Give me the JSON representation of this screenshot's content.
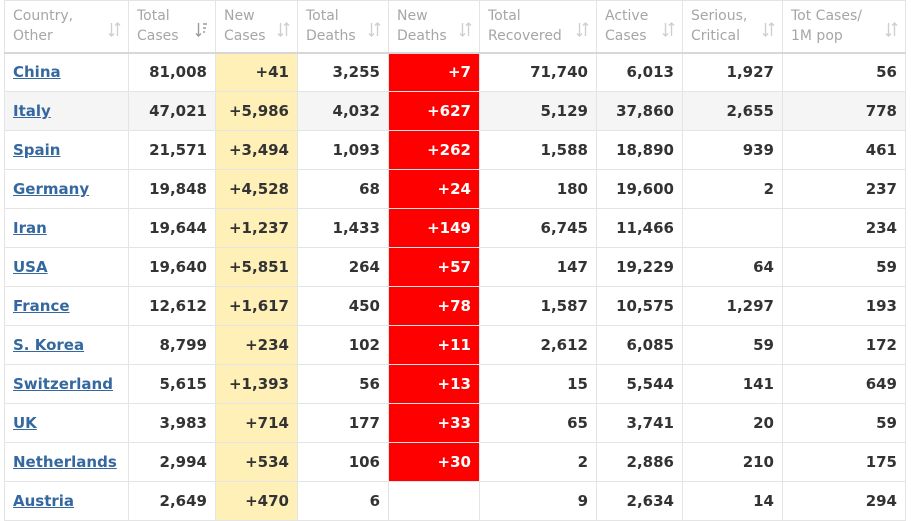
{
  "table": {
    "headers": [
      {
        "line1": "Country,",
        "line2": "Other",
        "icon": "sort-both-icon"
      },
      {
        "line1": "Total",
        "line2": "Cases",
        "icon": "sort-descending-icon"
      },
      {
        "line1": "New",
        "line2": "Cases",
        "icon": "sort-both-icon"
      },
      {
        "line1": "Total",
        "line2": "Deaths",
        "icon": "sort-both-icon"
      },
      {
        "line1": "New",
        "line2": "Deaths",
        "icon": "sort-both-icon"
      },
      {
        "line1": "Total",
        "line2": "Recovered",
        "icon": "sort-both-icon"
      },
      {
        "line1": "Active",
        "line2": "Cases",
        "icon": "sort-both-icon"
      },
      {
        "line1": "Serious,",
        "line2": "Critical",
        "icon": "sort-both-icon"
      },
      {
        "line1": "Tot Cases/",
        "line2": "1M pop",
        "icon": "sort-both-icon"
      }
    ],
    "rows": [
      {
        "country": "China",
        "total_cases": "81,008",
        "new_cases": "+41",
        "total_deaths": "3,255",
        "new_deaths": "+7",
        "total_recovered": "71,740",
        "active_cases": "6,013",
        "serious_critical": "1,927",
        "cases_per_1m": "56"
      },
      {
        "country": "Italy",
        "total_cases": "47,021",
        "new_cases": "+5,986",
        "total_deaths": "4,032",
        "new_deaths": "+627",
        "total_recovered": "5,129",
        "active_cases": "37,860",
        "serious_critical": "2,655",
        "cases_per_1m": "778"
      },
      {
        "country": "Spain",
        "total_cases": "21,571",
        "new_cases": "+3,494",
        "total_deaths": "1,093",
        "new_deaths": "+262",
        "total_recovered": "1,588",
        "active_cases": "18,890",
        "serious_critical": "939",
        "cases_per_1m": "461"
      },
      {
        "country": "Germany",
        "total_cases": "19,848",
        "new_cases": "+4,528",
        "total_deaths": "68",
        "new_deaths": "+24",
        "total_recovered": "180",
        "active_cases": "19,600",
        "serious_critical": "2",
        "cases_per_1m": "237"
      },
      {
        "country": "Iran",
        "total_cases": "19,644",
        "new_cases": "+1,237",
        "total_deaths": "1,433",
        "new_deaths": "+149",
        "total_recovered": "6,745",
        "active_cases": "11,466",
        "serious_critical": "",
        "cases_per_1m": "234"
      },
      {
        "country": "USA",
        "total_cases": "19,640",
        "new_cases": "+5,851",
        "total_deaths": "264",
        "new_deaths": "+57",
        "total_recovered": "147",
        "active_cases": "19,229",
        "serious_critical": "64",
        "cases_per_1m": "59"
      },
      {
        "country": "France",
        "total_cases": "12,612",
        "new_cases": "+1,617",
        "total_deaths": "450",
        "new_deaths": "+78",
        "total_recovered": "1,587",
        "active_cases": "10,575",
        "serious_critical": "1,297",
        "cases_per_1m": "193"
      },
      {
        "country": "S. Korea",
        "total_cases": "8,799",
        "new_cases": "+234",
        "total_deaths": "102",
        "new_deaths": "+11",
        "total_recovered": "2,612",
        "active_cases": "6,085",
        "serious_critical": "59",
        "cases_per_1m": "172"
      },
      {
        "country": "Switzerland",
        "total_cases": "5,615",
        "new_cases": "+1,393",
        "total_deaths": "56",
        "new_deaths": "+13",
        "total_recovered": "15",
        "active_cases": "5,544",
        "serious_critical": "141",
        "cases_per_1m": "649"
      },
      {
        "country": "UK",
        "total_cases": "3,983",
        "new_cases": "+714",
        "total_deaths": "177",
        "new_deaths": "+33",
        "total_recovered": "65",
        "active_cases": "3,741",
        "serious_critical": "20",
        "cases_per_1m": "59"
      },
      {
        "country": "Netherlands",
        "total_cases": "2,994",
        "new_cases": "+534",
        "total_deaths": "106",
        "new_deaths": "+30",
        "total_recovered": "2",
        "active_cases": "2,886",
        "serious_critical": "210",
        "cases_per_1m": "175"
      },
      {
        "country": "Austria",
        "total_cases": "2,649",
        "new_cases": "+470",
        "total_deaths": "6",
        "new_deaths": "",
        "total_recovered": "9",
        "active_cases": "2,634",
        "serious_critical": "14",
        "cases_per_1m": "294"
      }
    ]
  },
  "colors": {
    "link": "#34689f",
    "header_text": "#a6a6a6",
    "new_cases_bg": "#fff0b8",
    "new_deaths_bg": "#ff0000",
    "row_highlight_bg": "#f5f5f5"
  }
}
